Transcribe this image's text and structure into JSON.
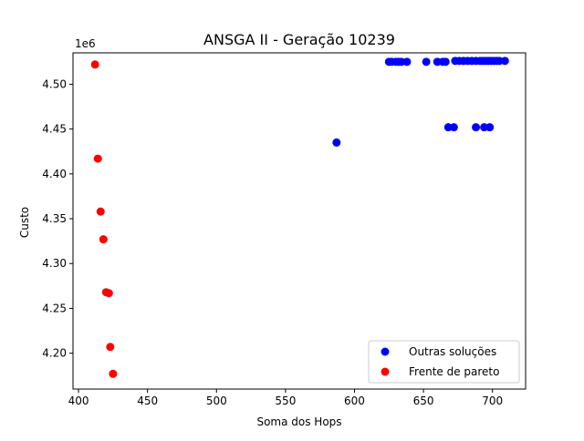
{
  "chart_data": {
    "type": "scatter",
    "title": "ANSGA II - Geração 10239",
    "xlabel": "Soma dos Hops",
    "ylabel": "Custo",
    "y_offset_label": "1e6",
    "y_scale_factor": 1000000,
    "xlim": [
      396,
      724
    ],
    "ylim": [
      4.16,
      4.535
    ],
    "xticks": [
      400,
      450,
      500,
      550,
      600,
      650,
      700
    ],
    "yticks": [
      4.2,
      4.25,
      4.3,
      4.35,
      4.4,
      4.45,
      4.5
    ],
    "ytick_labels": [
      "4.20",
      "4.25",
      "4.30",
      "4.35",
      "4.40",
      "4.45",
      "4.50"
    ],
    "grid": false,
    "legend_placement": "lower right",
    "series": [
      {
        "name": "Outras soluções",
        "color": "#0000ff",
        "points": [
          [
            587,
            4.435
          ],
          [
            625,
            4.525
          ],
          [
            627,
            4.525
          ],
          [
            630,
            4.525
          ],
          [
            632,
            4.525
          ],
          [
            634,
            4.525
          ],
          [
            638,
            4.525
          ],
          [
            652,
            4.525
          ],
          [
            660,
            4.525
          ],
          [
            664,
            4.525
          ],
          [
            666,
            4.525
          ],
          [
            673,
            4.526
          ],
          [
            676,
            4.526
          ],
          [
            679,
            4.526
          ],
          [
            682,
            4.526
          ],
          [
            685,
            4.526
          ],
          [
            688,
            4.526
          ],
          [
            691,
            4.526
          ],
          [
            693,
            4.526
          ],
          [
            695,
            4.526
          ],
          [
            697,
            4.526
          ],
          [
            699,
            4.526
          ],
          [
            701,
            4.526
          ],
          [
            703,
            4.526
          ],
          [
            705,
            4.526
          ],
          [
            709,
            4.526
          ],
          [
            668,
            4.452
          ],
          [
            672,
            4.452
          ],
          [
            688,
            4.452
          ],
          [
            694,
            4.452
          ],
          [
            698,
            4.452
          ]
        ]
      },
      {
        "name": "Frente de pareto",
        "color": "#ff0000",
        "points": [
          [
            412,
            4.522
          ],
          [
            414,
            4.417
          ],
          [
            416,
            4.358
          ],
          [
            418,
            4.327
          ],
          [
            420,
            4.268
          ],
          [
            422,
            4.267
          ],
          [
            423,
            4.207
          ],
          [
            425,
            4.177
          ]
        ]
      }
    ]
  }
}
